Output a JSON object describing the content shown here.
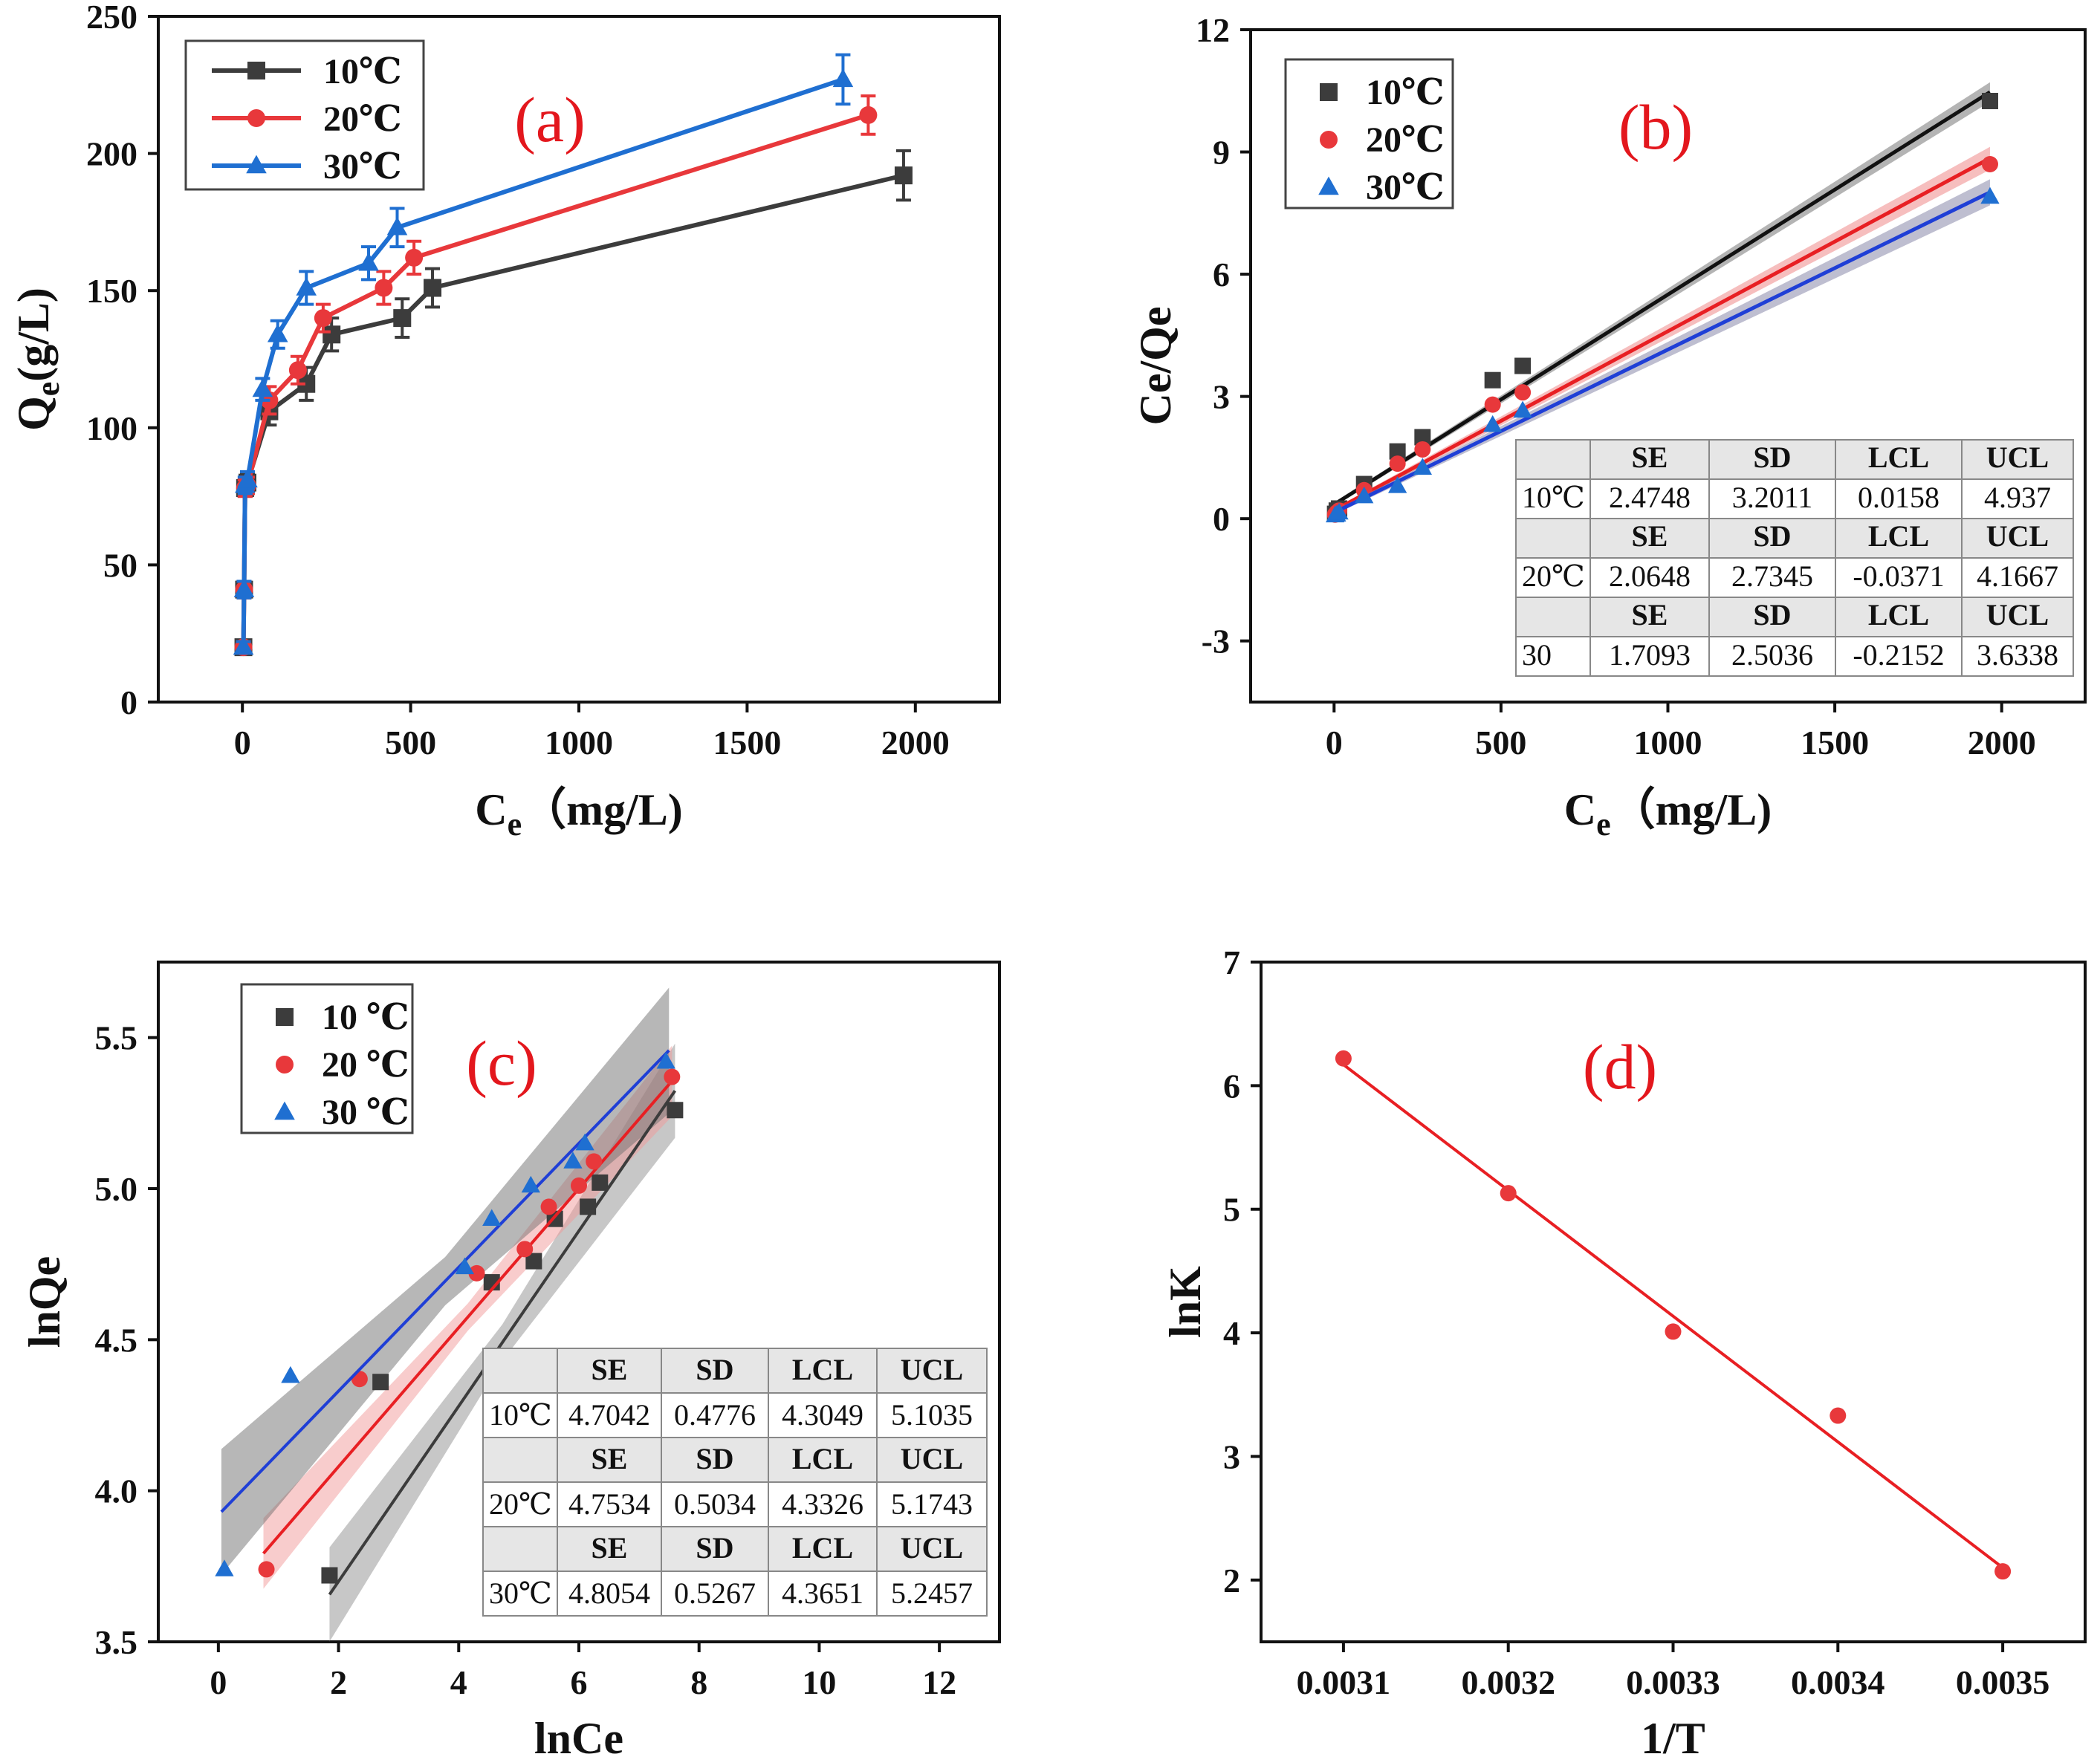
{
  "colors": {
    "s10": "#3c3c3c",
    "s20": "#e8383b",
    "s30": "#1f6fd1",
    "fitA": "#111111",
    "fitB": "#e81f23",
    "fitC": "#1f3fd6",
    "panel": "#e3171d"
  },
  "chart_data": [
    {
      "id": "a",
      "type": "line",
      "panel_label": "(a)",
      "xlabel_main": "C",
      "xlabel_sub": "e",
      "xlabel_rest": "（mg/L)",
      "ylabel_main": "Q",
      "ylabel_sub": "e",
      "ylabel_rest": "(g/L)",
      "xlim": [
        -250,
        2250
      ],
      "ylim": [
        0,
        250
      ],
      "xticks": [
        0,
        500,
        1000,
        1500,
        2000
      ],
      "yticks": [
        0,
        50,
        100,
        150,
        200,
        250
      ],
      "series": [
        {
          "name": "10℃",
          "marker": "square",
          "color": "#3c3c3c",
          "x": [
            3,
            5,
            8,
            15,
            80,
            190,
            265,
            475,
            565,
            1965
          ],
          "y": [
            20,
            41,
            78,
            80,
            106,
            116,
            134,
            140,
            151,
            192
          ],
          "err": [
            2,
            3,
            3,
            3,
            5,
            6,
            6,
            7,
            7,
            9
          ]
        },
        {
          "name": "20℃",
          "marker": "circle",
          "color": "#e8383b",
          "x": [
            3,
            5,
            8,
            15,
            80,
            165,
            240,
            420,
            510,
            1860
          ],
          "y": [
            20,
            41,
            78,
            79,
            110,
            121,
            140,
            151,
            162,
            214
          ],
          "err": [
            2,
            3,
            3,
            3,
            5,
            5,
            5,
            6,
            6,
            7
          ]
        },
        {
          "name": "30℃",
          "marker": "triangle",
          "color": "#1f6fd1",
          "x": [
            3,
            5,
            8,
            15,
            60,
            105,
            190,
            375,
            460,
            1785
          ],
          "y": [
            20,
            41,
            79,
            81,
            114,
            134,
            151,
            160,
            173,
            227
          ],
          "err": [
            2,
            3,
            3,
            3,
            4,
            5,
            6,
            6,
            7,
            9
          ]
        }
      ]
    },
    {
      "id": "b",
      "type": "scatter",
      "panel_label": "(b)",
      "xlabel_main": "C",
      "xlabel_sub": "e",
      "xlabel_rest": "（mg/L)",
      "ylabel": "Ce/Qe",
      "xlim": [
        -250,
        2250
      ],
      "ylim": [
        -4.5,
        12
      ],
      "xticks": [
        0,
        500,
        1000,
        1500,
        2000
      ],
      "yticks": [
        -3,
        0,
        3,
        6,
        9,
        12
      ],
      "series": [
        {
          "name": "10℃",
          "marker": "square",
          "color": "#3c3c3c",
          "x": [
            3,
            8,
            15,
            90,
            190,
            265,
            475,
            565,
            1965
          ],
          "y": [
            0.12,
            0.2,
            0.25,
            0.85,
            1.65,
            2.0,
            3.4,
            3.75,
            10.25
          ],
          "fit": [
            0.35,
            0.00515
          ]
        },
        {
          "name": "20℃",
          "marker": "circle",
          "color": "#e8383b",
          "x": [
            3,
            8,
            15,
            90,
            190,
            265,
            475,
            565,
            1965
          ],
          "y": [
            0.1,
            0.15,
            0.2,
            0.7,
            1.35,
            1.7,
            2.8,
            3.1,
            8.7
          ],
          "fit": [
            0.2,
            0.0044
          ]
        },
        {
          "name": "30℃",
          "marker": "triangle",
          "color": "#1f6fd1",
          "x": [
            3,
            8,
            15,
            90,
            190,
            265,
            475,
            565,
            1965
          ],
          "y": [
            0.08,
            0.1,
            0.15,
            0.55,
            0.8,
            1.25,
            2.3,
            2.65,
            7.9
          ],
          "fit": [
            0.15,
            0.004
          ]
        }
      ],
      "stats_header": [
        "SE",
        "SD",
        "LCL",
        "UCL"
      ],
      "stats": [
        {
          "label": "10℃",
          "values": [
            "2.4748",
            "3.2011",
            "0.0158",
            "4.937"
          ]
        },
        {
          "label": "20℃",
          "values": [
            "2.0648",
            "2.7345",
            "-0.0371",
            "4.1667"
          ]
        },
        {
          "label": "30",
          "values": [
            "1.7093",
            "2.5036",
            "-0.2152",
            "3.6338"
          ]
        }
      ]
    },
    {
      "id": "c",
      "type": "scatter",
      "panel_label": "(c)",
      "xlabel": "lnCe",
      "ylabel": "lnQe",
      "xlim": [
        -1,
        13
      ],
      "ylim": [
        3.5,
        5.75
      ],
      "xticks": [
        0,
        2,
        4,
        6,
        8,
        10,
        12
      ],
      "yticks": [
        3.5,
        4.0,
        4.5,
        5.0,
        5.5
      ],
      "series": [
        {
          "name": "10 ℃",
          "marker": "square",
          "color": "#3c3c3c",
          "x": [
            1.85,
            2.7,
            4.55,
            5.25,
            5.6,
            6.15,
            6.35,
            7.6
          ],
          "y": [
            3.72,
            4.36,
            4.69,
            4.76,
            4.9,
            4.94,
            5.02,
            5.26
          ],
          "fit": [
            3.12,
            0.29
          ],
          "fit_range": [
            1.85,
            7.6
          ]
        },
        {
          "name": "20 ℃",
          "marker": "circle",
          "color": "#e8383b",
          "x": [
            0.8,
            2.35,
            4.3,
            5.1,
            5.5,
            6.0,
            6.25,
            7.55
          ],
          "y": [
            3.74,
            4.37,
            4.72,
            4.8,
            4.94,
            5.01,
            5.09,
            5.37
          ],
          "fit": [
            3.62,
            0.23
          ],
          "fit_range": [
            0.75,
            7.55
          ]
        },
        {
          "name": "30 ℃",
          "marker": "triangle",
          "color": "#1f6fd1",
          "x": [
            0.1,
            1.2,
            4.1,
            4.55,
            5.2,
            5.9,
            6.1,
            7.45
          ],
          "y": [
            3.74,
            4.38,
            4.74,
            4.9,
            5.01,
            5.09,
            5.15,
            5.42
          ],
          "fit": [
            3.92,
            0.205
          ],
          "fit_range": [
            0.05,
            7.5
          ]
        }
      ],
      "stats_header": [
        "SE",
        "SD",
        "LCL",
        "UCL"
      ],
      "stats": [
        {
          "label": "10℃",
          "values": [
            "4.7042",
            "0.4776",
            "4.3049",
            "5.1035"
          ]
        },
        {
          "label": "20℃",
          "values": [
            "4.7534",
            "0.5034",
            "4.3326",
            "5.1743"
          ]
        },
        {
          "label": "30℃",
          "values": [
            "4.8054",
            "0.5267",
            "4.3651",
            "5.2457"
          ]
        }
      ]
    },
    {
      "id": "d",
      "type": "scatter",
      "panel_label": "(d)",
      "xlabel": "1/T",
      "ylabel": "lnK",
      "xlim": [
        0.00305,
        0.00355
      ],
      "ylim": [
        1.5,
        7
      ],
      "xticks": [
        0.0031,
        0.0032,
        0.0033,
        0.0034,
        0.0035
      ],
      "xtick_labels": [
        "0.0031",
        "0.0032",
        "0.0033",
        "0.0034",
        "0.0035"
      ],
      "yticks": [
        2,
        3,
        4,
        5,
        6,
        7
      ],
      "series": [
        {
          "name": "lnK",
          "marker": "circle",
          "color": "#e8383b",
          "x": [
            0.0031,
            0.0032,
            0.0033,
            0.0034,
            0.0035
          ],
          "y": [
            6.22,
            5.13,
            4.01,
            3.33,
            2.07
          ],
          "fit_line": [
            [
              0.0031,
              6.17
            ],
            [
              0.0035,
              2.1
            ]
          ]
        }
      ]
    }
  ]
}
